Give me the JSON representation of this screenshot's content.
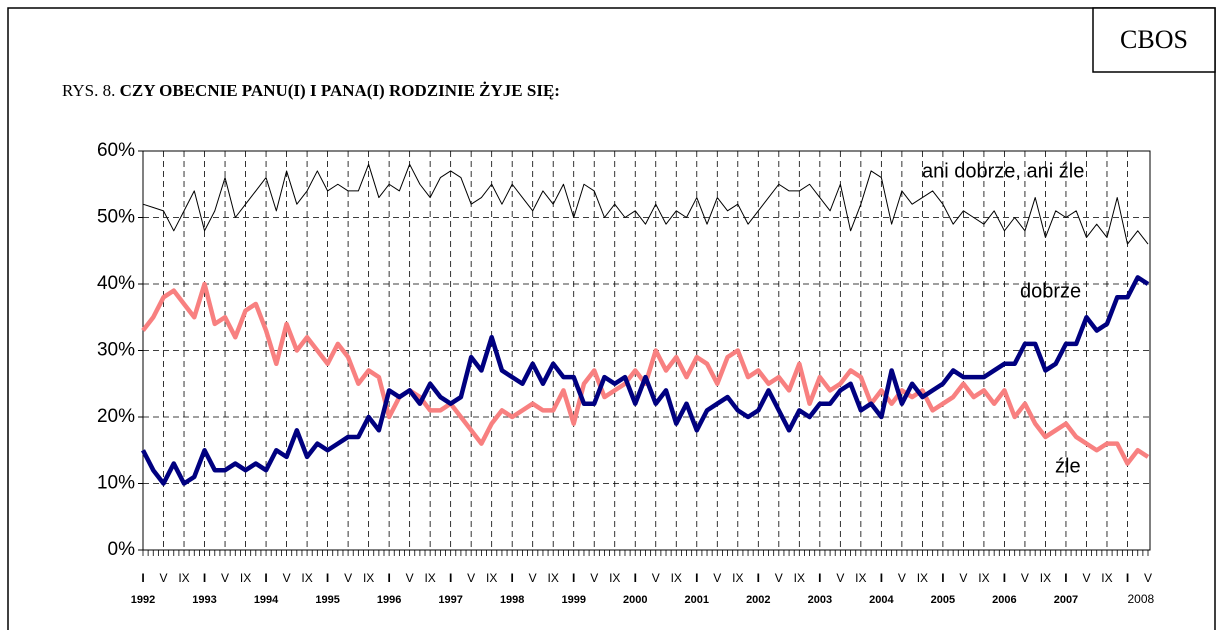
{
  "chart_data": {
    "type": "line",
    "badge": "CBOS",
    "title_prefix": "RYS. 8.",
    "title": "CZY OBECNIE PANU(I) I PANA(I) RODZINIE ŻYJE SIĘ:",
    "categories": [
      "I",
      null,
      "V",
      null,
      "IX",
      null,
      "I",
      null,
      "V",
      null,
      "IX",
      null,
      "I",
      null,
      "V",
      null,
      "IX",
      null,
      "I",
      null,
      "V",
      null,
      "IX",
      null,
      "I",
      null,
      "V",
      null,
      "IX",
      null,
      "I",
      null,
      "V",
      null,
      "IX",
      null,
      "I",
      null,
      "V",
      null,
      "IX",
      null,
      "I",
      null,
      "V",
      null,
      "IX",
      null,
      "I",
      null,
      "V",
      null,
      "IX",
      null,
      "I",
      null,
      "V",
      null,
      "IX",
      null,
      "I",
      null,
      "V",
      null,
      "IX",
      null,
      "I",
      null,
      "V",
      null,
      "IX",
      null,
      "I",
      null,
      "V",
      null,
      "IX",
      null,
      "I",
      null,
      "V",
      null,
      "IX",
      null,
      "I",
      null,
      "V",
      null,
      "IX",
      null,
      "I",
      null,
      "V",
      null,
      "IX",
      null,
      "I",
      null,
      "V"
    ],
    "year_labels": [
      "1992",
      "1993",
      "1994",
      "1995",
      "1996",
      "1997",
      "1998",
      "1999",
      "2000",
      "2001",
      "2002",
      "2003",
      "2004",
      "2005",
      "2006",
      "2007",
      "2008"
    ],
    "series": [
      {
        "name": "ani dobrze, ani źle",
        "color": "#000000",
        "values": [
          52,
          51.5,
          51,
          48,
          51,
          54,
          48,
          51,
          56,
          50,
          52,
          54,
          56,
          51,
          57,
          52,
          54,
          57,
          54,
          55,
          54,
          54,
          58,
          53,
          55,
          54,
          58,
          55,
          53,
          56,
          57,
          56,
          52,
          53,
          55,
          52,
          55,
          53,
          51,
          54,
          52,
          55,
          50,
          55,
          54,
          50,
          52,
          50,
          51,
          49,
          52,
          49,
          51,
          50,
          53,
          49,
          53,
          51,
          52,
          49,
          51,
          53,
          55,
          54,
          54,
          55,
          53,
          51,
          55,
          48,
          52,
          57,
          56,
          49,
          54,
          52,
          53,
          54,
          52,
          49,
          51,
          50,
          49,
          51,
          48,
          50,
          48,
          53,
          47,
          51,
          50,
          51,
          47,
          49,
          47,
          53,
          46,
          48,
          46
        ]
      },
      {
        "name": "dobrze",
        "color": "#000080",
        "values": [
          15,
          12,
          10,
          13,
          10,
          11,
          15,
          12,
          12,
          13,
          12,
          13,
          12,
          15,
          14,
          18,
          14,
          16,
          15,
          16,
          17,
          17,
          20,
          18,
          24,
          23,
          24,
          22,
          25,
          23,
          22,
          23,
          29,
          27,
          32,
          27,
          26,
          25,
          28,
          25,
          28,
          26,
          26,
          22,
          22,
          26,
          25,
          26,
          22,
          26,
          22,
          24,
          19,
          22,
          18,
          21,
          22,
          23,
          21,
          20,
          21,
          24,
          21,
          18,
          21,
          20,
          22,
          22,
          24,
          25,
          21,
          22,
          20,
          27,
          22,
          25,
          23,
          24,
          25,
          27,
          26,
          26,
          26,
          27,
          28,
          28,
          31,
          31,
          27,
          28,
          31,
          31,
          35,
          33,
          34,
          38,
          38,
          41,
          40
        ]
      },
      {
        "name": "źle",
        "color": "#f88080",
        "values": [
          33,
          35,
          38,
          39,
          37,
          35,
          40,
          34,
          35,
          32,
          36,
          37,
          33,
          28,
          34,
          30,
          32,
          30,
          28,
          31,
          29,
          25,
          27,
          26,
          20,
          23,
          24,
          23,
          21,
          21,
          22,
          20,
          18,
          16,
          19,
          21,
          20,
          21,
          22,
          21,
          21,
          24,
          19,
          25,
          27,
          23,
          24,
          25,
          27,
          25,
          30,
          27,
          29,
          26,
          29,
          28,
          25,
          29,
          30,
          26,
          27,
          25,
          26,
          24,
          28,
          22,
          26,
          24,
          25,
          27,
          26,
          22,
          24,
          22,
          24,
          23,
          24,
          21,
          22,
          23,
          25,
          23,
          24,
          22,
          24,
          20,
          22,
          19,
          17,
          18,
          19,
          17,
          16,
          15,
          16,
          16,
          13,
          15,
          14
        ]
      }
    ],
    "ylim": [
      0,
      60
    ],
    "yticks": [
      {
        "value": 0,
        "label": "0%"
      },
      {
        "value": 10,
        "label": "10%"
      },
      {
        "value": 20,
        "label": "20%"
      },
      {
        "value": 30,
        "label": "30%"
      },
      {
        "value": 40,
        "label": "40%"
      },
      {
        "value": 50,
        "label": "50%"
      },
      {
        "value": 60,
        "label": "60%"
      }
    ],
    "grid": true
  }
}
